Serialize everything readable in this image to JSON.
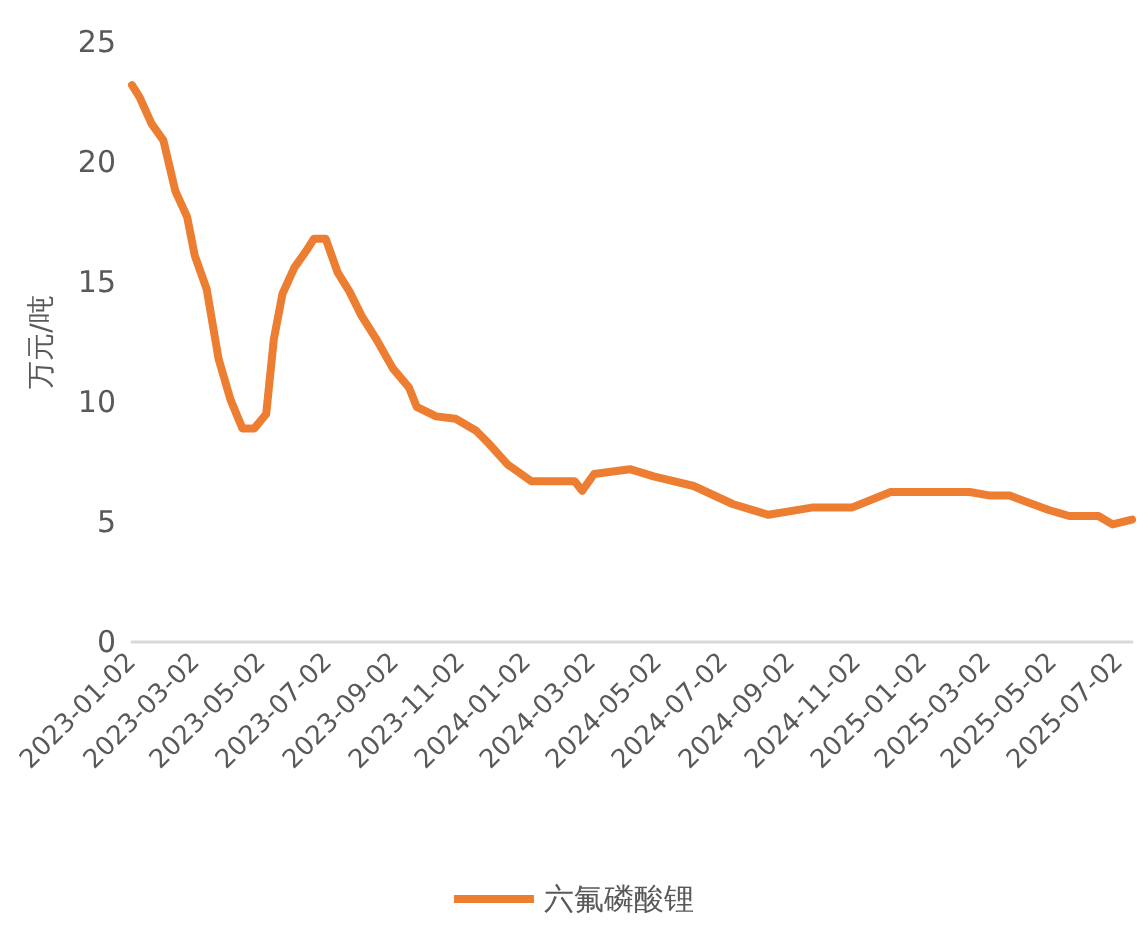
{
  "chart_data": {
    "type": "line",
    "ylabel": "万元/吨",
    "legend": "bottom",
    "grid": false,
    "marker": "none",
    "line_style": "solid",
    "xlim": [
      "2023-01-02",
      "2025-07-14"
    ],
    "xticks": [
      "2023-01-02",
      "2023-03-02",
      "2023-05-02",
      "2023-07-02",
      "2023-09-02",
      "2023-11-02",
      "2024-01-02",
      "2024-03-02",
      "2024-05-02",
      "2024-07-02",
      "2024-09-02",
      "2024-11-02",
      "2025-01-02",
      "2025-03-02",
      "2025-05-02",
      "2025-07-02"
    ],
    "ylim": [
      0,
      25
    ],
    "yticks": [
      0,
      5,
      10,
      15,
      20,
      25
    ],
    "x": [
      "2023-01-02",
      "2023-01-09",
      "2023-01-20",
      "2023-01-31",
      "2023-02-11",
      "2023-02-22",
      "2023-03-01",
      "2023-03-12",
      "2023-03-23",
      "2023-04-03",
      "2023-04-14",
      "2023-04-25",
      "2023-05-06",
      "2023-05-13",
      "2023-05-21",
      "2023-06-01",
      "2023-06-12",
      "2023-06-19",
      "2023-06-30",
      "2023-07-11",
      "2023-07-22",
      "2023-08-02",
      "2023-08-16",
      "2023-08-31",
      "2023-09-15",
      "2023-09-22",
      "2023-10-10",
      "2023-10-28",
      "2023-11-16",
      "2023-11-27",
      "2023-12-15",
      "2024-01-06",
      "2024-02-15",
      "2024-02-22",
      "2024-03-04",
      "2024-04-06",
      "2024-04-28",
      "2024-06-04",
      "2024-07-10",
      "2024-08-12",
      "2024-09-21",
      "2024-10-28",
      "2024-12-03",
      "2025-02-14",
      "2025-03-05",
      "2025-03-23",
      "2025-04-28",
      "2025-05-17",
      "2025-06-13",
      "2025-06-26",
      "2025-07-14"
    ],
    "series": [
      {
        "name": "六氟磷酸锂",
        "color": "#ed7d31",
        "values": [
          23.2,
          22.7,
          21.6,
          20.9,
          18.8,
          17.7,
          16.1,
          14.7,
          11.8,
          10.1,
          8.9,
          8.9,
          9.5,
          12.6,
          14.5,
          15.6,
          16.3,
          16.8,
          16.8,
          15.4,
          14.6,
          13.6,
          12.6,
          11.4,
          10.6,
          9.8,
          9.4,
          9.3,
          8.8,
          8.3,
          7.4,
          6.7,
          6.7,
          6.3,
          7.0,
          7.2,
          6.9,
          6.5,
          5.75,
          5.3,
          5.6,
          5.6,
          6.25,
          6.25,
          6.1,
          6.1,
          5.5,
          5.25,
          5.25,
          4.9,
          5.1
        ]
      }
    ]
  }
}
